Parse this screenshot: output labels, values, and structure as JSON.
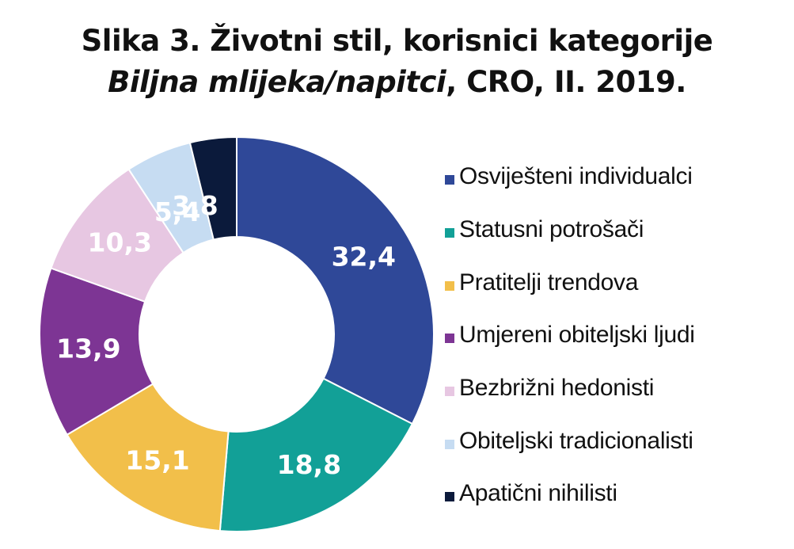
{
  "title": {
    "line1": "Slika 3. Životni stil, korisnici kategorije",
    "line2_italic": "Biljna mlijeka/napitci",
    "line2_rest": ", CRO, II. 2019."
  },
  "chart_data": {
    "type": "pie",
    "donut": true,
    "legend_position": "right",
    "series": [
      {
        "categories": [
          "Osviješteni individualci",
          "Statusni potrošači",
          "Pratitelji trendova",
          "Umjereni obiteljski ljudi",
          "Bezbrižni hedonisti",
          "Obiteljski tradicionalisti",
          "Apatični nihilisti"
        ],
        "values": [
          32.4,
          18.8,
          15.1,
          13.9,
          10.3,
          5.4,
          3.8
        ],
        "value_labels": [
          "32,4",
          "18,8",
          "15,1",
          "13,9",
          "10,3",
          "5,4",
          "3,8"
        ],
        "colors": [
          "#2f4898",
          "#12a097",
          "#f2bf4a",
          "#7d3594",
          "#e7c7e2",
          "#c6dcf2",
          "#0b1a3b"
        ]
      }
    ]
  }
}
